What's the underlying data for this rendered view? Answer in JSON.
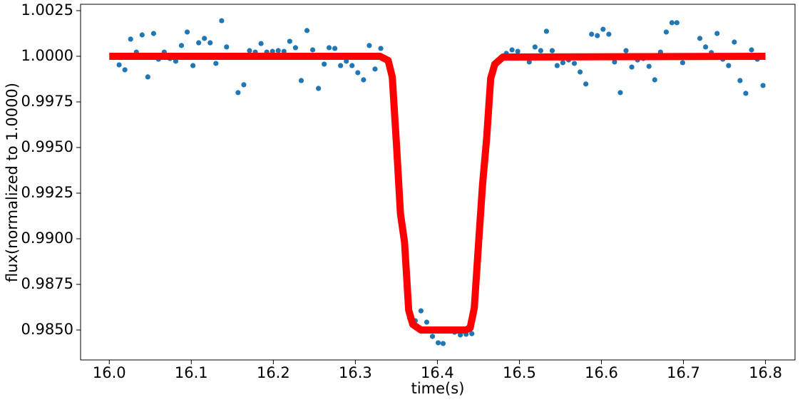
{
  "chart_data": {
    "type": "scatter",
    "xlabel": "time(s)",
    "ylabel": "flux(normalized to 1.0000)",
    "xlim": [
      15.965,
      16.836
    ],
    "ylim": [
      0.98336,
      1.00285
    ],
    "xticks": [
      {
        "value": 16.0,
        "label": "16.0"
      },
      {
        "value": 16.1,
        "label": "16.1"
      },
      {
        "value": 16.2,
        "label": "16.2"
      },
      {
        "value": 16.3,
        "label": "16.3"
      },
      {
        "value": 16.4,
        "label": "16.4"
      },
      {
        "value": 16.5,
        "label": "16.5"
      },
      {
        "value": 16.6,
        "label": "16.6"
      },
      {
        "value": 16.7,
        "label": "16.7"
      },
      {
        "value": 16.8,
        "label": "16.8"
      }
    ],
    "yticks": [
      {
        "value": 0.985,
        "label": "0.9850"
      },
      {
        "value": 0.9875,
        "label": "0.9875"
      },
      {
        "value": 0.99,
        "label": "0.9900"
      },
      {
        "value": 0.9925,
        "label": "0.9925"
      },
      {
        "value": 0.995,
        "label": "0.9950"
      },
      {
        "value": 0.9975,
        "label": "0.9975"
      },
      {
        "value": 1.0,
        "label": "1.0000"
      },
      {
        "value": 1.0025,
        "label": "1.0025"
      }
    ],
    "series": [
      {
        "type": "scatter",
        "color": "#1f77b4",
        "x": [
          16.012,
          16.019,
          16.026,
          16.033,
          16.04,
          16.047,
          16.054,
          16.06,
          16.067,
          16.074,
          16.081,
          16.088,
          16.095,
          16.102,
          16.109,
          16.116,
          16.123,
          16.13,
          16.137,
          16.143,
          16.157,
          16.164,
          16.171,
          16.178,
          16.185,
          16.192,
          16.199,
          16.206,
          16.213,
          16.22,
          16.227,
          16.234,
          16.241,
          16.248,
          16.255,
          16.262,
          16.268,
          16.275,
          16.282,
          16.289,
          16.296,
          16.303,
          16.31,
          16.317,
          16.324,
          16.331,
          16.366,
          16.373,
          16.38,
          16.387,
          16.394,
          16.401,
          16.407,
          16.414,
          16.421,
          16.428,
          16.435,
          16.442,
          16.484,
          16.491,
          16.498,
          16.512,
          16.519,
          16.526,
          16.533,
          16.54,
          16.546,
          16.553,
          16.56,
          16.567,
          16.574,
          16.581,
          16.588,
          16.595,
          16.602,
          16.609,
          16.616,
          16.623,
          16.63,
          16.637,
          16.644,
          16.651,
          16.658,
          16.665,
          16.672,
          16.679,
          16.686,
          16.692,
          16.699,
          16.706,
          16.72,
          16.727,
          16.734,
          16.741,
          16.748,
          16.755,
          16.762,
          16.769,
          16.776,
          16.783,
          16.79,
          16.797
        ],
        "values": [
          0.99953,
          0.99926,
          1.00094,
          1.00023,
          1.00117,
          0.99887,
          1.00125,
          0.99984,
          1.00023,
          0.99988,
          0.99973,
          1.00059,
          1.00133,
          0.99949,
          1.00074,
          1.00098,
          1.00074,
          0.99961,
          1.00195,
          1.00051,
          0.99801,
          0.99844,
          1.00031,
          1.00023,
          1.0007,
          1.00023,
          1.00027,
          1.00031,
          1.00027,
          1.00082,
          1.00047,
          0.99867,
          1.00141,
          1.00035,
          0.99824,
          0.99957,
          1.00047,
          1.00043,
          0.99949,
          0.99973,
          0.99949,
          0.9991,
          0.99871,
          1.00059,
          0.9993,
          1.00043,
          0.98566,
          0.98551,
          0.98605,
          0.98543,
          0.98465,
          0.9843,
          0.98426,
          0.98504,
          0.98488,
          0.98473,
          0.98477,
          0.9848,
          1.00016,
          1.00035,
          1.00027,
          0.99969,
          1.00051,
          1.00031,
          1.00137,
          1.00031,
          0.99949,
          0.99965,
          0.9998,
          0.99961,
          0.99914,
          0.99848,
          1.00121,
          1.00113,
          1.00148,
          1.00121,
          0.99969,
          0.99801,
          1.00031,
          0.99941,
          0.9998,
          0.99988,
          0.99945,
          0.99871,
          1.00023,
          1.00133,
          1.00184,
          1.00184,
          0.99965,
          0.99996,
          1.00098,
          1.00051,
          1.0002,
          1.00125,
          0.99984,
          0.99949,
          1.00078,
          0.99867,
          0.99797,
          1.00035,
          0.99984,
          0.9984
        ]
      },
      {
        "type": "line",
        "color": "#ff0000",
        "x": [
          16.0,
          16.33,
          16.34,
          16.345,
          16.35,
          16.355,
          16.36,
          16.365,
          16.37,
          16.38,
          16.435,
          16.44,
          16.445,
          16.45,
          16.455,
          16.46,
          16.465,
          16.47,
          16.48,
          16.8
        ],
        "values": [
          1,
          1,
          0.99977,
          0.99887,
          0.99527,
          0.99137,
          0.9898,
          0.98609,
          0.98531,
          0.985,
          0.985,
          0.98512,
          0.98621,
          0.98961,
          0.99293,
          0.99547,
          0.99879,
          0.99957,
          0.99996,
          1
        ]
      }
    ]
  }
}
